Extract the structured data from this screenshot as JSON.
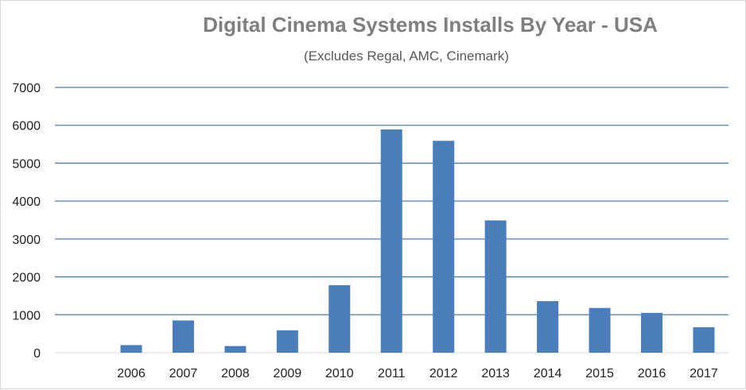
{
  "chart_data": {
    "type": "bar",
    "title": "Digital Cinema Systems Installs By Year - USA",
    "subtitle": "(Excludes Regal, AMC, Cinemark)",
    "xlabel": "",
    "ylabel": "",
    "ylim": [
      0,
      7000
    ],
    "yticks": [
      0,
      1000,
      2000,
      3000,
      4000,
      5000,
      6000,
      7000
    ],
    "grid": true,
    "legend": "none",
    "categories": [
      "2006",
      "2007",
      "2008",
      "2009",
      "2010",
      "2011",
      "2012",
      "2013",
      "2014",
      "2015",
      "2016",
      "2017"
    ],
    "values": [
      200,
      850,
      175,
      590,
      1780,
      5890,
      5590,
      3490,
      1360,
      1180,
      1050,
      670
    ],
    "colors": {
      "bar": "#4a7ebb",
      "grid": "#4a7ebb",
      "axis": "#d9d9d9"
    }
  }
}
